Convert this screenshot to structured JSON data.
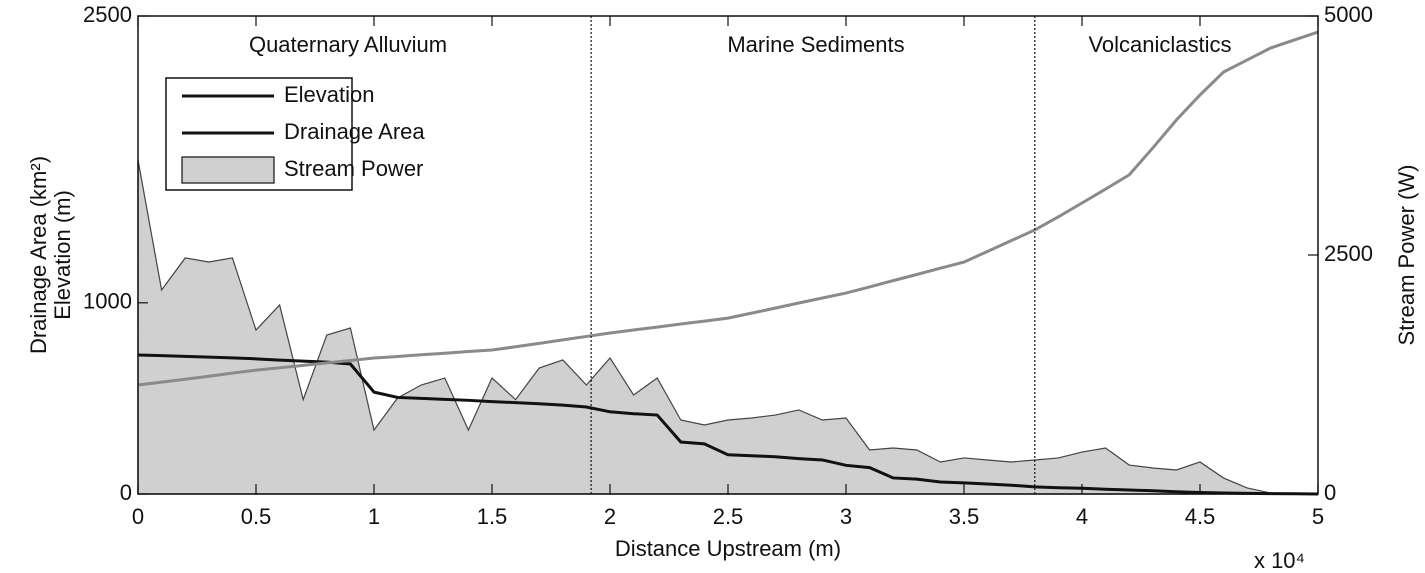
{
  "chart_data": {
    "type": "line",
    "ylabel": [
      "Drainage Area (km²)",
      "Elevation (m)"
    ],
    "y2label": "Stream Power (W)",
    "xlabel": "Distance Upstream (m)",
    "x_multiplier": "x 10⁴",
    "annotations": [
      "Quaternary Alluvium",
      "Marine Sediments",
      "Volcaniclastics"
    ],
    "boundaries": [
      1.92,
      3.8
    ],
    "xlim": [
      0,
      5
    ],
    "xticks": [
      0,
      0.5,
      1,
      1.5,
      2,
      2.5,
      3,
      3.5,
      4,
      4.5,
      5
    ],
    "ylim": [
      0,
      2500
    ],
    "yticks": [
      0,
      1000,
      2500
    ],
    "y2lim": [
      0,
      5000
    ],
    "y2ticks": [
      0,
      2500,
      5000
    ],
    "legend": "upper left",
    "x": [
      0,
      0.1,
      0.2,
      0.3,
      0.4,
      0.5,
      0.6,
      0.7,
      0.8,
      0.9,
      1,
      1.1,
      1.2,
      1.3,
      1.4,
      1.5,
      1.6,
      1.7,
      1.8,
      1.9,
      2,
      2.1,
      2.2,
      2.3,
      2.4,
      2.5,
      2.6,
      2.7,
      2.8,
      2.9,
      3,
      3.1,
      3.2,
      3.3,
      3.4,
      3.5,
      3.6,
      3.7,
      3.8,
      3.9,
      4,
      4.1,
      4.2,
      4.3,
      4.4,
      4.5,
      4.6,
      4.7,
      4.8,
      4.9,
      5
    ],
    "series": [
      {
        "name": "Elevation",
        "kind": "line",
        "color": "#111111",
        "values": [
          727,
          724,
          720,
          716,
          712,
          707,
          700,
          695,
          690,
          680,
          533,
          505,
          500,
          495,
          490,
          483,
          478,
          472,
          465,
          455,
          430,
          420,
          413,
          272,
          262,
          205,
          200,
          195,
          185,
          178,
          150,
          138,
          84,
          78,
          63,
          58,
          52,
          46,
          37,
          33,
          30,
          25,
          21,
          17,
          12,
          8,
          5,
          3,
          2,
          1,
          0
        ]
      },
      {
        "name": "Drainage Area",
        "kind": "line",
        "color": "#8a8a8a",
        "values": [
          570,
          585,
          600,
          616,
          632,
          648,
          660,
          673,
          686,
          698,
          711,
          719,
          728,
          736,
          745,
          753,
          770,
          788,
          806,
          824,
          842,
          858,
          873,
          889,
          904,
          920,
          946,
          972,
          999,
          1025,
          1051,
          1083,
          1116,
          1148,
          1181,
          1213,
          1269,
          1325,
          1381,
          1450,
          1522,
          1595,
          1669,
          1810,
          1956,
          2087,
          2207,
          2270,
          2333,
          2375,
          2416
        ]
      },
      {
        "name": "Stream Power",
        "kind": "area",
        "axis": "y2",
        "color": "#d0d0d0",
        "values": [
          3494,
          2134,
          2469,
          2427,
          2469,
          1715,
          1977,
          987,
          1663,
          1736,
          669,
          1004,
          1140,
          1213,
          669,
          1213,
          987,
          1318,
          1402,
          1140,
          1423,
          1036,
          1213,
          774,
          722,
          774,
          795,
          826,
          879,
          774,
          795,
          460,
          481,
          460,
          335,
          377,
          356,
          335,
          356,
          377,
          439,
          481,
          303,
          272,
          251,
          335,
          167,
          63,
          10,
          0,
          0
        ]
      }
    ]
  }
}
